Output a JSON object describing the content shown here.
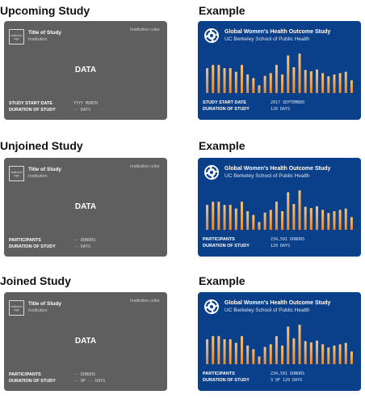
{
  "template": {
    "logo_text": "Institution logo",
    "title": "Title of Study",
    "institution": "Institution",
    "color_label": "Institution color",
    "data_label": "DATA"
  },
  "example_card": {
    "title": "Global Women's Health Outcome Study",
    "institution": "UC Berkeley School of Public Health",
    "bar_levels": [
      0.55,
      0.62,
      0.62,
      0.55,
      0.55,
      0.47,
      0.62,
      0.41,
      0.33,
      0.17,
      0.38,
      0.44,
      0.62,
      0.41,
      0.83,
      0.57,
      0.87,
      0.51,
      0.48,
      0.52,
      0.44,
      0.37,
      0.41,
      0.44,
      0.47,
      0.28
    ]
  },
  "sections": [
    {
      "heading": "Upcoming Study",
      "example_heading": "Example",
      "labels": [
        "STUDY START DATE",
        "DURATION OF STUDY"
      ],
      "template_values": [
        "YYYY MONTH",
        "-- DAYS"
      ],
      "example_values": [
        "2017 SEPTEMBER",
        "120 DAYS"
      ]
    },
    {
      "heading": "Unjoined Study",
      "example_heading": "Example",
      "labels": [
        "PARTICIPANTS",
        "DURATION OF STUDY"
      ],
      "template_values": [
        "-- DONORS",
        "-- DAYS"
      ],
      "example_values": [
        "234,591 DONORS",
        "120 DAYS"
      ]
    },
    {
      "heading": "Joined Study",
      "example_heading": "Example",
      "labels": [
        "PARTICIPANTS",
        "DURATION OF STUDY"
      ],
      "template_values": [
        "-- DONORS",
        "-- OF -- DAYS"
      ],
      "example_values": [
        "234,591 DONORS",
        "3 OF 120 DAYS"
      ]
    }
  ],
  "colors": {
    "template_bg": "#5f5f5f",
    "example_bg": "#0a3f8a",
    "bar_top": "#f6c27a",
    "bar_bottom": "#e98a2c"
  }
}
